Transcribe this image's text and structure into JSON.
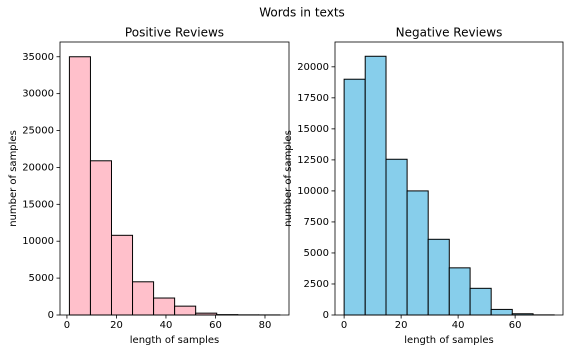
{
  "title": "Words in texts",
  "chart_data": [
    {
      "type": "histogram",
      "title": "Positive Reviews",
      "xlabel": "length of samples",
      "ylabel": "number of samples",
      "bins": [
        1,
        9.5,
        18,
        26.5,
        35,
        43.5,
        52,
        60.5,
        69,
        77.5,
        86
      ],
      "values": [
        35000,
        20900,
        10800,
        4500,
        2300,
        1200,
        250,
        50,
        20,
        10
      ],
      "color": "#ffc0cb",
      "edgecolor": "#000000",
      "xlim": [
        -2.8,
        89.7
      ],
      "ylim": [
        0,
        37000
      ],
      "xticks": [
        0,
        20,
        40,
        60,
        80
      ],
      "yticks": [
        0,
        5000,
        10000,
        15000,
        20000,
        25000,
        30000,
        35000
      ]
    },
    {
      "type": "histogram",
      "title": "Negative Reviews",
      "xlabel": "length of samples",
      "ylabel": "number of samples",
      "bins": [
        0,
        7.4,
        14.7,
        22.1,
        29.5,
        36.9,
        44.2,
        51.6,
        59,
        66.3,
        73.7
      ],
      "values": [
        19000,
        20850,
        12550,
        10000,
        6100,
        3800,
        2150,
        450,
        100,
        10
      ],
      "color": "#87ceeb",
      "edgecolor": "#000000",
      "xlim": [
        -3.2,
        76.8
      ],
      "ylim": [
        0,
        22000
      ],
      "xticks": [
        0,
        20,
        40,
        60
      ],
      "yticks": [
        0,
        2500,
        5000,
        7500,
        10000,
        12500,
        15000,
        17500,
        20000
      ]
    }
  ]
}
